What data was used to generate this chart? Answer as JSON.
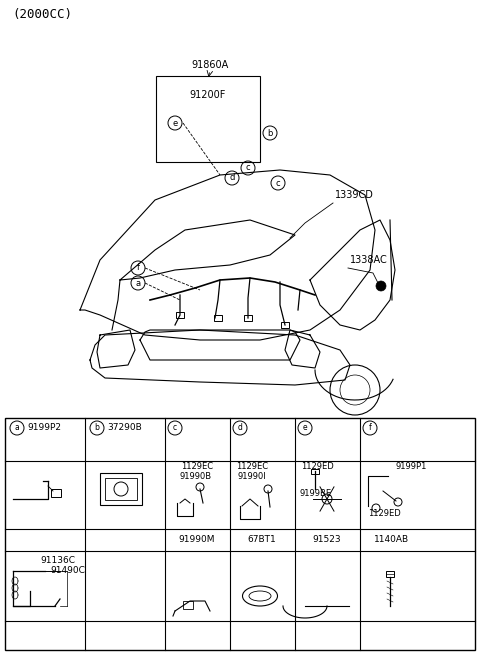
{
  "title_text": "(2000CC)",
  "bg_color": "#ffffff",
  "line_color": "#000000",
  "text_color": "#000000",
  "top_label": "91860A",
  "box_label": "91200F",
  "label_1339CD": "1339CD",
  "label_1338AC": "1338AC",
  "font_size_title": 9,
  "font_size_label": 7,
  "font_size_table": 6.5,
  "table_col_headers_a": "9199P2",
  "table_col_headers_b": "37290B",
  "row1_c": [
    "1129EC",
    "91990B"
  ],
  "row1_d": [
    "1129EC",
    "91990I"
  ],
  "row1_e": [
    "1129ED",
    "9199BE"
  ],
  "row1_f": [
    "9199P1",
    "1129ED"
  ],
  "row2_c": "91990M",
  "row2_d": "67BT1",
  "row2_e": "91523",
  "row2_f": "1140AB",
  "row3_label1": "91136C",
  "row3_label2": "91490C"
}
